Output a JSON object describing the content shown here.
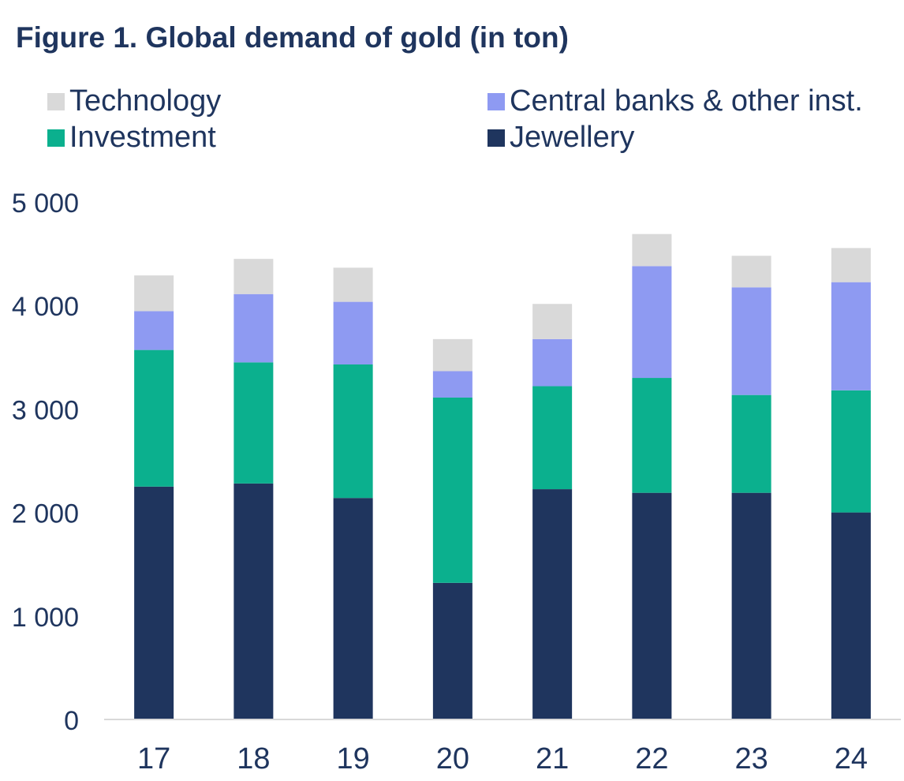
{
  "chart_data": {
    "type": "bar",
    "stacked": true,
    "title": "Figure 1. Global demand of gold (in ton)",
    "xlabel": "",
    "ylabel": "",
    "categories": [
      "17",
      "18",
      "19",
      "20",
      "21",
      "22",
      "23",
      "24"
    ],
    "ylim": [
      0,
      5000
    ],
    "yticks": [
      0,
      1000,
      2000,
      3000,
      4000,
      5000
    ],
    "ytick_labels": [
      "0",
      "1 000",
      "2 000",
      "3 000",
      "4 000",
      "5 000"
    ],
    "grid": false,
    "legend_position": "top",
    "series": [
      {
        "name": "Jewellery",
        "color": "#1f355e",
        "values": [
          2250,
          2280,
          2140,
          1320,
          2225,
          2190,
          2190,
          2000
        ]
      },
      {
        "name": "Investment",
        "color": "#0bb08e",
        "values": [
          1320,
          1170,
          1290,
          1790,
          995,
          1110,
          945,
          1180
        ]
      },
      {
        "name": "Central banks & other inst.",
        "color": "#8e9af2",
        "values": [
          375,
          660,
          605,
          255,
          455,
          1080,
          1040,
          1045
        ]
      },
      {
        "name": "Technology",
        "color": "#d9d9d9",
        "values": [
          345,
          340,
          330,
          310,
          340,
          310,
          305,
          330
        ]
      }
    ],
    "legend_order": [
      "Technology",
      "Central banks & other inst.",
      "Investment",
      "Jewellery"
    ]
  },
  "colors": {
    "text": "#1f355e",
    "axis_line": "#d9d9d9"
  }
}
